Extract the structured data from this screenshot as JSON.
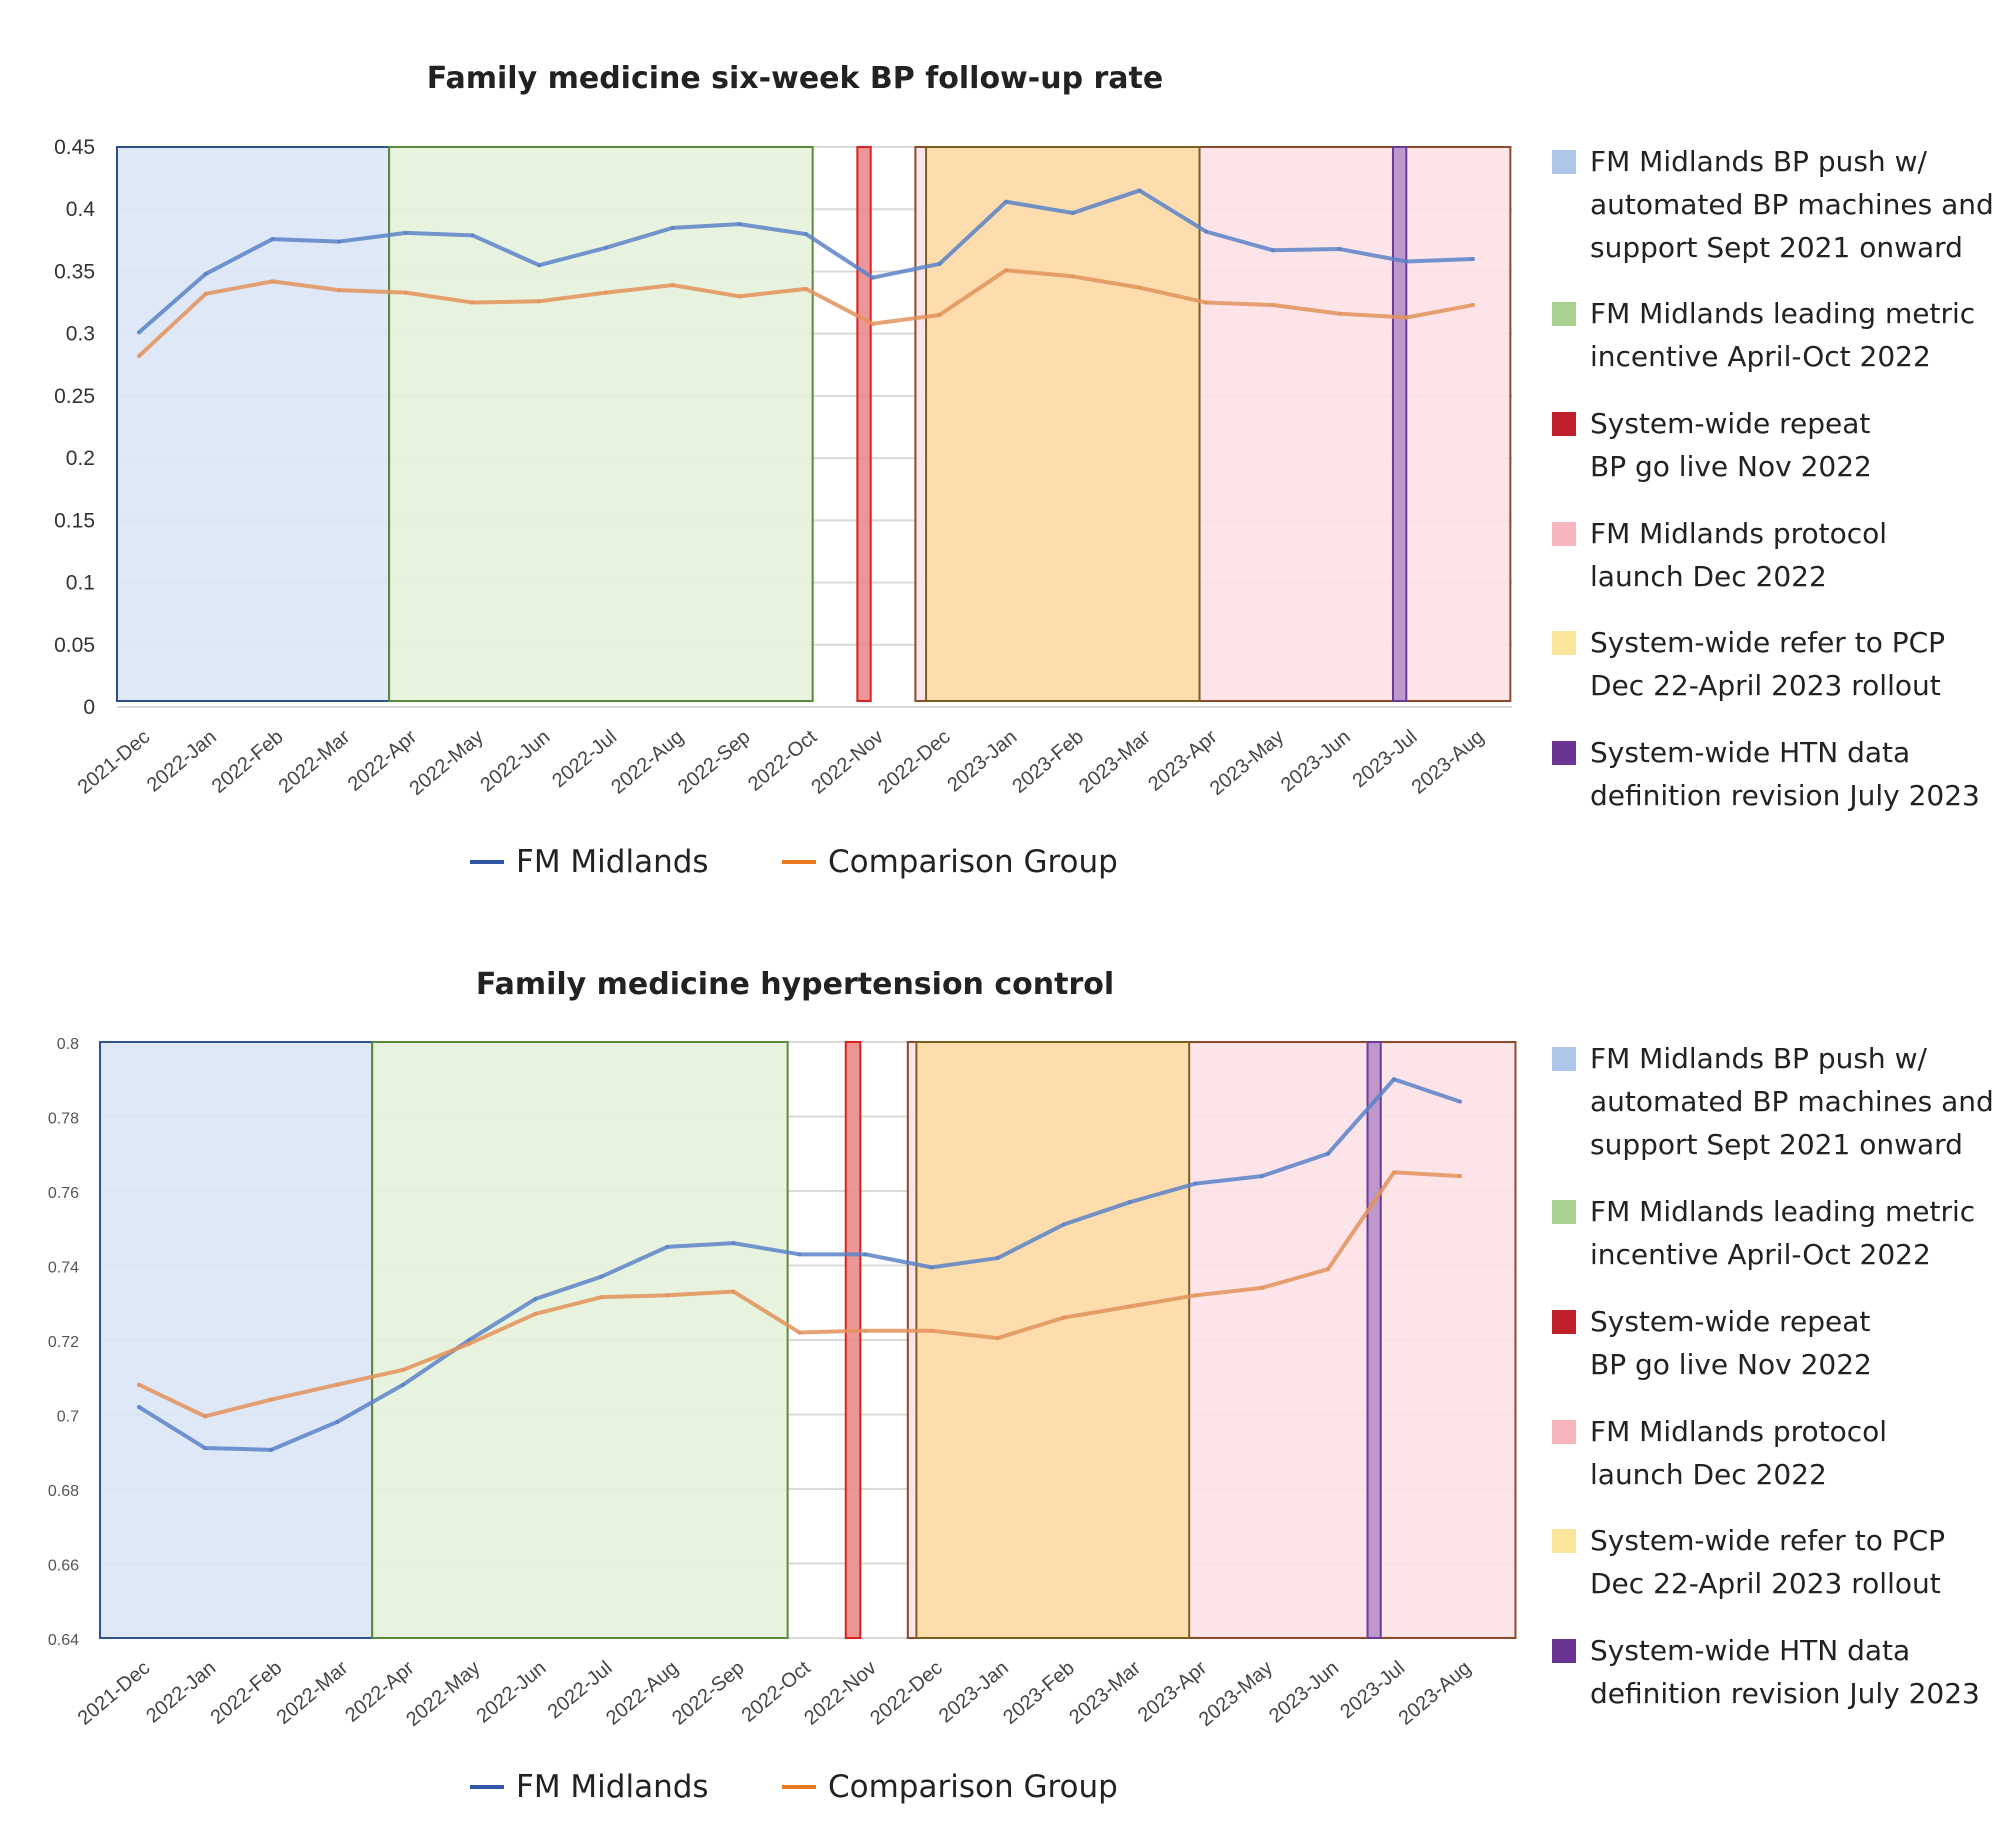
{
  "chart_data": [
    {
      "type": "line",
      "title": "Family medicine six-week BP follow-up rate",
      "categories": [
        "2021-Dec",
        "2022-Jan",
        "2022-Feb",
        "2022-Mar",
        "2022-Apr",
        "2022-May",
        "2022-Jun",
        "2022-Jul",
        "2022-Aug",
        "2022-Sep",
        "2022-Oct",
        "2022-Nov",
        "2022-Dec",
        "2023-Jan",
        "2023-Feb",
        "2023-Mar",
        "2023-Apr",
        "2023-May",
        "2023-Jun",
        "2023-Jul",
        "2023-Aug"
      ],
      "yticks": [
        "0",
        "0.05",
        "0.1",
        "0.15",
        "0.2",
        "0.25",
        "0.3",
        "0.35",
        "0.4",
        "0.45"
      ],
      "ylim": [
        0,
        0.45
      ],
      "grid": true,
      "series": [
        {
          "name": "FM Midlands",
          "color": "#2f55a4",
          "values": [
            0.301,
            0.348,
            0.376,
            0.374,
            0.381,
            0.379,
            0.355,
            0.369,
            0.385,
            0.388,
            0.38,
            0.345,
            0.356,
            0.406,
            0.397,
            0.415,
            0.382,
            0.367,
            0.368,
            0.358,
            0.36
          ]
        },
        {
          "name": "Comparison Group",
          "color": "#e87722",
          "values": [
            0.282,
            0.332,
            0.342,
            0.335,
            0.333,
            0.325,
            0.326,
            0.333,
            0.339,
            0.33,
            0.336,
            0.308,
            0.315,
            0.351,
            0.346,
            0.337,
            0.325,
            0.323,
            0.316,
            0.313,
            0.323
          ]
        }
      ],
      "legend": [
        {
          "label": "FM Midlands BP push w/\nautomated BP machines and\nsupport Sept 2021 onward",
          "color": "#aec6ea"
        },
        {
          "label": "FM Midlands leading metric\nincentive April-Oct 2022",
          "color": "#a9d08e"
        },
        {
          "label": "System-wide repeat\nBP go live Nov 2022",
          "color": "#c0202a"
        },
        {
          "label": "FM Midlands protocol\nlaunch Dec 2022",
          "color": "#f7b6bd"
        },
        {
          "label": "System-wide refer to PCP\nDec 22-April 2023 rollout",
          "color": "#fbe59a"
        },
        {
          "label": "System-wide HTN data\ndefinition revision July 2023",
          "color": "#6b3494"
        }
      ]
    },
    {
      "type": "line",
      "title": "Family medicine hypertension control",
      "categories": [
        "2021-Dec",
        "2022-Jan",
        "2022-Feb",
        "2022-Mar",
        "2022-Apr",
        "2022-May",
        "2022-Jun",
        "2022-Jul",
        "2022-Aug",
        "2022-Sep",
        "2022-Oct",
        "2022-Nov",
        "2022-Dec",
        "2023-Jan",
        "2023-Feb",
        "2023-Mar",
        "2023-Apr",
        "2023-May",
        "2023-Jun",
        "2023-Jul",
        "2023-Aug"
      ],
      "yticks": [
        "0.64",
        "0.66",
        "0.68",
        "0.7",
        "0.72",
        "0.74",
        "0.76",
        "0.78",
        "0.8"
      ],
      "ylim": [
        0.64,
        0.8
      ],
      "grid": true,
      "series": [
        {
          "name": "FM Midlands",
          "color": "#2f55a4",
          "values": [
            0.702,
            0.691,
            0.6905,
            0.698,
            0.708,
            0.72,
            0.731,
            0.737,
            0.745,
            0.746,
            0.743,
            0.743,
            0.7395,
            0.742,
            0.751,
            0.757,
            0.762,
            0.764,
            0.77,
            0.79,
            0.784
          ]
        },
        {
          "name": "Comparison Group",
          "color": "#e87722",
          "values": [
            0.708,
            0.6995,
            0.704,
            0.708,
            0.712,
            0.719,
            0.727,
            0.7315,
            0.732,
            0.733,
            0.722,
            0.7225,
            0.7225,
            0.7205,
            0.726,
            0.729,
            0.732,
            0.734,
            0.739,
            0.765,
            0.764
          ]
        }
      ],
      "legend": [
        {
          "label": "FM Midlands BP push w/\nautomated BP machines and\nsupport Sept 2021 onward",
          "color": "#aec6ea"
        },
        {
          "label": "FM Midlands leading metric\nincentive April-Oct 2022",
          "color": "#a9d08e"
        },
        {
          "label": "System-wide repeat\nBP go live Nov 2022",
          "color": "#c0202a"
        },
        {
          "label": "FM Midlands protocol\nlaunch Dec 2022",
          "color": "#f7b6bd"
        },
        {
          "label": "System-wide refer to PCP\nDec 22-April 2023 rollout",
          "color": "#fbe59a"
        },
        {
          "label": "System-wide HTN data\ndefinition revision July 2023",
          "color": "#6b3494"
        }
      ]
    }
  ]
}
